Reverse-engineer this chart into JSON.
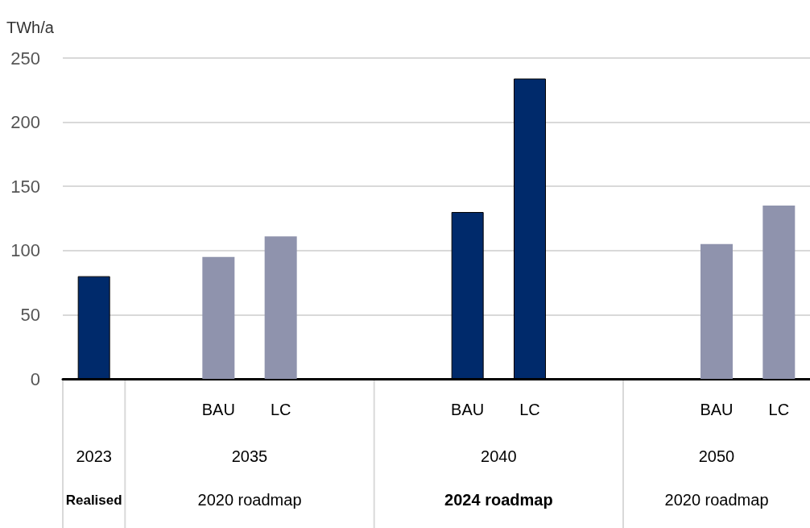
{
  "chart_data": {
    "type": "bar",
    "ylabel": "TWh/a",
    "categories": [
      null,
      null,
      "BAU",
      "LC",
      null,
      null,
      "BAU",
      "LC",
      null,
      null,
      "BAU",
      "LC"
    ],
    "series": [
      {
        "color": "#002a6b",
        "values": [
          80,
          null,
          null,
          null,
          null,
          null,
          130,
          234,
          null,
          null,
          null,
          null
        ]
      },
      {
        "color": "#8f93ad",
        "values": [
          null,
          null,
          95,
          111,
          null,
          null,
          null,
          null,
          null,
          null,
          105,
          135
        ]
      }
    ],
    "ylim": [
      0,
      250
    ],
    "yticks": [
      0,
      50,
      100,
      150,
      200,
      250
    ],
    "grid": "y",
    "annotations": [
      "2023",
      "Realised",
      "2035",
      "2020 roadmap",
      "2040",
      "2024 roadmap",
      "2050",
      "2020 roadmap"
    ]
  }
}
